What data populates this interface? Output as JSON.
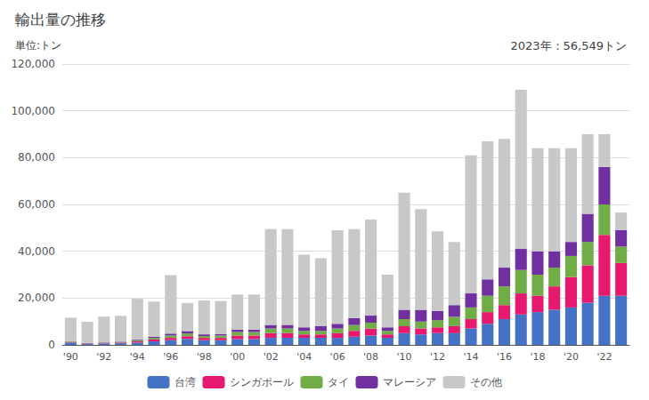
{
  "chart_data": {
    "type": "bar",
    "title": "輸出量の推移",
    "y_label": "単位:トン",
    "annotation": "2023年：56,549トン",
    "categories": [
      "'90",
      null,
      "'92",
      null,
      "'94",
      null,
      "'96",
      null,
      "'98",
      null,
      "'00",
      null,
      "'02",
      null,
      "'04",
      null,
      "'06",
      null,
      "'08",
      null,
      "'10",
      null,
      "'12",
      null,
      "'14",
      null,
      "'16",
      null,
      "'18",
      null,
      "'20",
      null,
      "'22",
      null
    ],
    "series": [
      {
        "name": "台湾",
        "color": "#4472c4",
        "values": [
          1000,
          500,
          600,
          700,
          1000,
          1500,
          2000,
          2500,
          2000,
          2000,
          2500,
          2500,
          3000,
          3000,
          3000,
          3000,
          3000,
          3500,
          4000,
          3000,
          5000,
          4500,
          5000,
          5000,
          7000,
          9000,
          11000,
          13000,
          14000,
          15000,
          16000,
          18000,
          21000,
          21000
        ]
      },
      {
        "name": "シンガポール",
        "color": "#e6196e",
        "values": [
          300,
          200,
          200,
          300,
          500,
          800,
          1000,
          1200,
          1000,
          1000,
          1500,
          1500,
          2000,
          2000,
          1500,
          1500,
          2000,
          2500,
          3000,
          1500,
          3000,
          2500,
          2500,
          3000,
          4000,
          5000,
          6000,
          9000,
          7000,
          10000,
          13000,
          16000,
          26000,
          14000
        ]
      },
      {
        "name": "タイ",
        "color": "#70ad47",
        "values": [
          200,
          100,
          200,
          200,
          400,
          700,
          1000,
          1200,
          800,
          1000,
          1500,
          1500,
          2000,
          2000,
          1500,
          1500,
          2000,
          2500,
          2500,
          1500,
          3000,
          3000,
          3000,
          4000,
          5000,
          7000,
          8000,
          10000,
          9000,
          8000,
          9000,
          10000,
          13000,
          7000
        ]
      },
      {
        "name": "マレーシア",
        "color": "#7030a0",
        "values": [
          100,
          100,
          100,
          200,
          300,
          500,
          800,
          1000,
          700,
          700,
          1000,
          1000,
          1500,
          1500,
          1500,
          2000,
          2000,
          3000,
          3000,
          1500,
          4000,
          5000,
          4000,
          5000,
          6000,
          7000,
          8000,
          9000,
          10000,
          7000,
          6000,
          12000,
          16000,
          7000
        ]
      },
      {
        "name": "その他",
        "color": "#c8c8c8",
        "values": [
          10000,
          9000,
          11000,
          11000,
          17500,
          15000,
          25000,
          12000,
          14500,
          14000,
          15000,
          15000,
          41000,
          41000,
          31000,
          29000,
          40000,
          38000,
          41000,
          22500,
          50000,
          43000,
          34000,
          27000,
          59000,
          59000,
          55000,
          68000,
          44000,
          44000,
          40000,
          34000,
          14000,
          7549
        ]
      }
    ],
    "ylim": [
      0,
      120000
    ],
    "yticks": [
      0,
      {
        "value": 20000,
        "label": "20,000"
      },
      {
        "value": 40000,
        "label": "40,000"
      },
      {
        "value": 60000,
        "label": "60,000"
      },
      {
        "value": 80000,
        "label": "80,000"
      },
      {
        "value": 100000,
        "label": "100,000"
      },
      {
        "value": 120000,
        "label": "120,000"
      }
    ],
    "grid": true,
    "stacked": true,
    "legend": "bottom"
  }
}
